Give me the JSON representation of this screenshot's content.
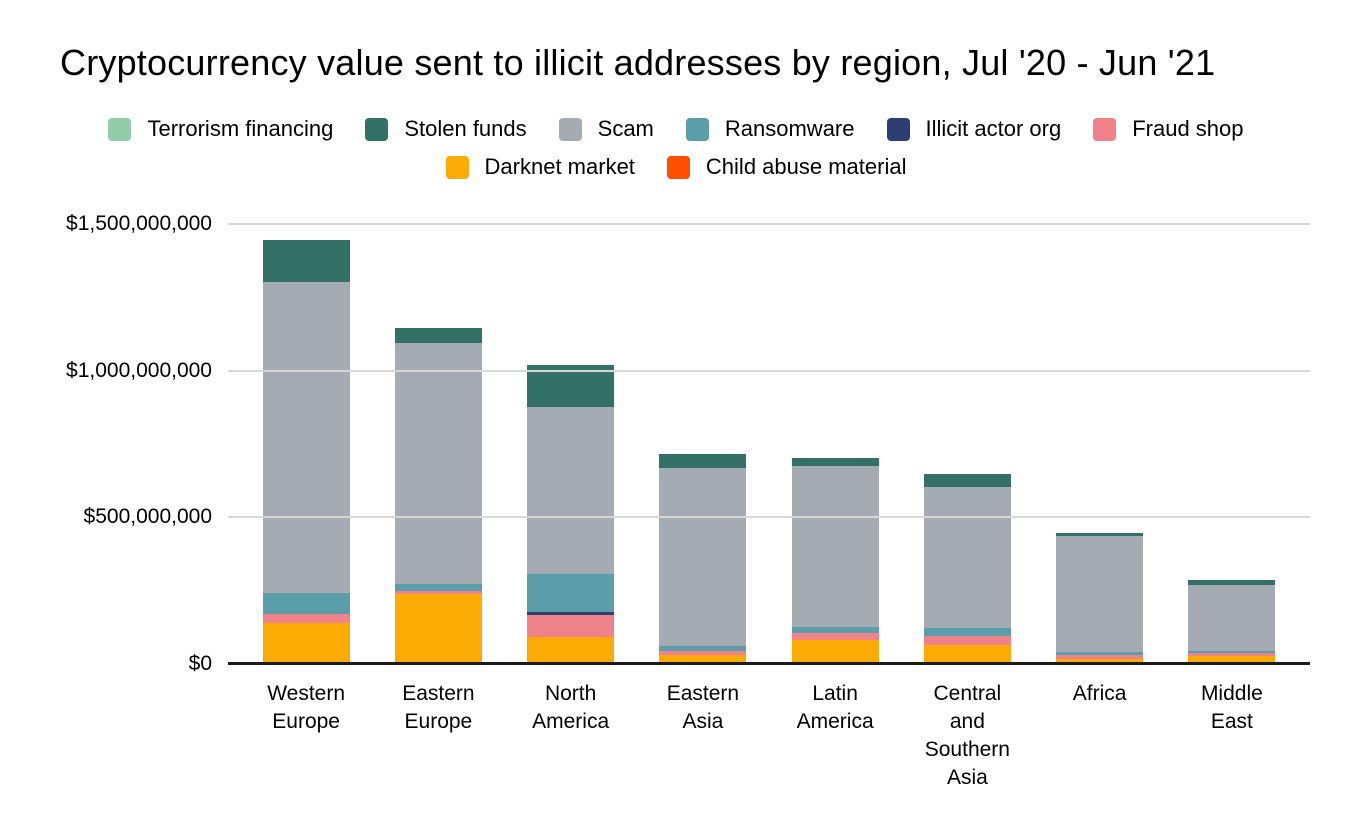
{
  "title": "Cryptocurrency value sent to illicit addresses by region, Jul '20 - Jun '21",
  "background_color": "#ffffff",
  "chart_data": {
    "type": "bar",
    "stacked": true,
    "title": "Cryptocurrency value sent to illicit addresses by region, Jul '20 - Jun '21",
    "xlabel": "",
    "ylabel": "",
    "units": "USD",
    "values_note": "values in millions of USD, estimated from bar heights",
    "grid": true,
    "legend_position": "top",
    "axis_color": "#1c1c1c",
    "gridline_color": "#d7d7d7",
    "ylim_musd": [
      0,
      1500
    ],
    "y_ticks": [
      {
        "value_musd": 0,
        "label": "$0"
      },
      {
        "value_musd": 500,
        "label": "$500,000,000"
      },
      {
        "value_musd": 1000,
        "label": "$1,000,000,000"
      },
      {
        "value_musd": 1500,
        "label": "$1,500,000,000"
      }
    ],
    "categories": [
      "Western Europe",
      "Eastern Europe",
      "North America",
      "Eastern Asia",
      "Latin America",
      "Central and Southern Asia",
      "Africa",
      "Middle East"
    ],
    "tick_label_lines": [
      [
        "Western",
        "Europe"
      ],
      [
        "Eastern",
        "Europe"
      ],
      [
        "North",
        "America"
      ],
      [
        "Eastern",
        "Asia"
      ],
      [
        "Latin",
        "America"
      ],
      [
        "Central",
        "and",
        "Southern",
        "Asia"
      ],
      [
        "Africa"
      ],
      [
        "Middle",
        "East"
      ]
    ],
    "stack_order_bottom_to_top": [
      "Child abuse material",
      "Darknet market",
      "Fraud shop",
      "Illicit actor org",
      "Ransomware",
      "Scam",
      "Stolen funds",
      "Terrorism financing"
    ],
    "series": [
      {
        "name": "Terrorism financing",
        "color": "#92cca8",
        "values_musd": [
          0,
          0,
          0,
          0,
          0,
          0,
          0,
          0
        ]
      },
      {
        "name": "Stolen funds",
        "color": "#337065",
        "values_musd": [
          143,
          53,
          142,
          49,
          28,
          45,
          10,
          19
        ]
      },
      {
        "name": "Scam",
        "color": "#a4abb3",
        "values_musd": [
          1062,
          820,
          570,
          607,
          548,
          480,
          395,
          223
        ]
      },
      {
        "name": "Ransomware",
        "color": "#5c9daa",
        "values_musd": [
          72,
          23,
          131,
          15,
          22,
          28,
          9,
          9
        ]
      },
      {
        "name": "Illicit actor org",
        "color": "#2d3e72",
        "values_musd": [
          0,
          0,
          9,
          0,
          0,
          0,
          0,
          0
        ]
      },
      {
        "name": "Fraud shop",
        "color": "#f0838a",
        "values_musd": [
          29,
          12,
          76,
          16,
          23,
          31,
          14,
          10
        ]
      },
      {
        "name": "Darknet market",
        "color": "#fbab04",
        "values_musd": [
          140,
          238,
          92,
          30,
          82,
          65,
          18,
          26
        ]
      },
      {
        "name": "Child abuse material",
        "color": "#fe5000",
        "values_musd": [
          0,
          0,
          0,
          0,
          0,
          0,
          0,
          0
        ]
      }
    ],
    "totals_musd": [
      1446,
      1146,
      1020,
      717,
      703,
      649,
      446,
      287
    ]
  }
}
